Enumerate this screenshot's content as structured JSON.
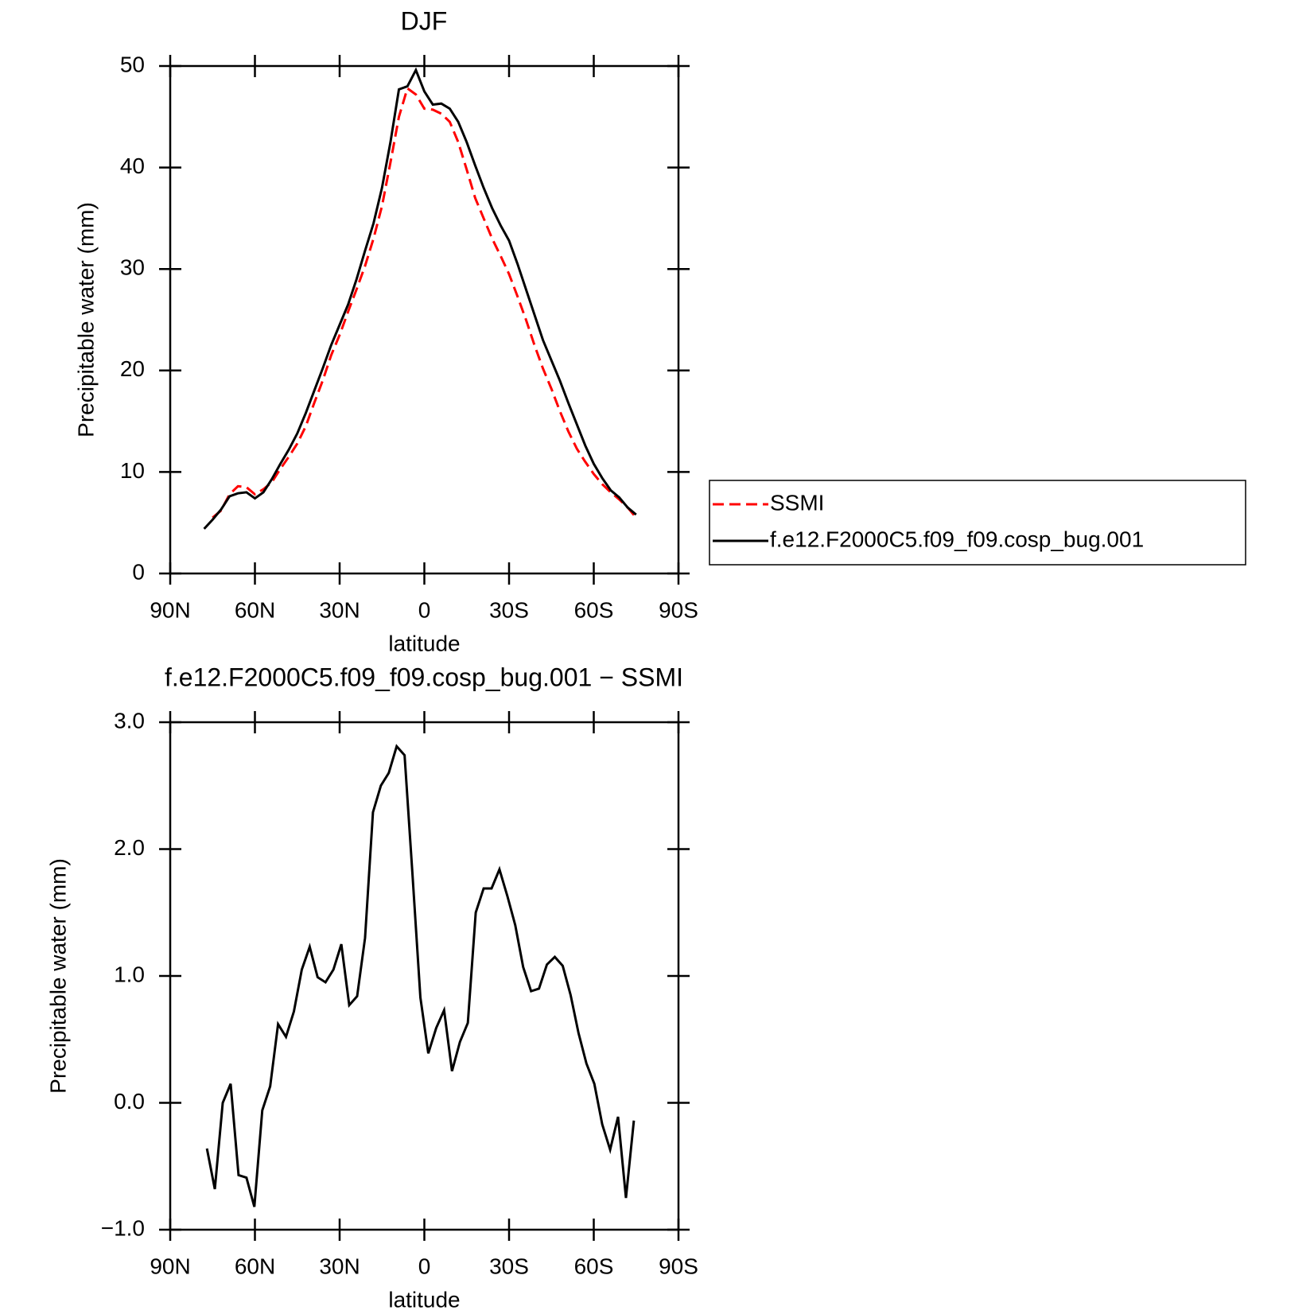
{
  "chart_data": [
    {
      "type": "line",
      "title": "DJF",
      "xlabel": "latitude",
      "ylabel": "Precipitable water (mm)",
      "x": [
        78,
        75,
        72,
        69,
        66,
        63,
        60,
        57,
        54,
        51,
        48,
        45,
        42,
        39,
        36,
        33,
        30,
        27,
        24,
        21,
        18,
        15,
        12,
        9,
        6,
        3,
        0,
        -3,
        -6,
        -9,
        -12,
        -15,
        -18,
        -21,
        -24,
        -27,
        -30,
        -33,
        -36,
        -39,
        -42,
        -45,
        -48,
        -51,
        -54,
        -57,
        -60,
        -63,
        -66,
        -69,
        -72,
        -75
      ],
      "series": [
        {
          "name": "SSMI",
          "color": "#ff0000",
          "dash": true,
          "values": [
            null,
            5.5,
            6.2,
            7.8,
            8.6,
            8.5,
            7.8,
            8.3,
            9.0,
            10.3,
            11.5,
            12.8,
            14.5,
            16.8,
            19.0,
            21.5,
            23.5,
            25.8,
            28.0,
            30.3,
            33.0,
            36.2,
            40.5,
            45.0,
            47.8,
            47.2,
            45.8,
            45.7,
            45.3,
            44.5,
            42.5,
            39.8,
            37.0,
            35.0,
            33.0,
            31.3,
            29.5,
            27.3,
            25.0,
            22.5,
            20.2,
            18.2,
            16.0,
            14.0,
            12.3,
            11.0,
            9.8,
            8.8,
            8.0,
            7.3,
            6.5,
            5.5
          ]
        },
        {
          "name": "f.e12.F2000C5.f09_f09.cosp_bug.001",
          "color": "#000000",
          "dash": false,
          "values": [
            4.4,
            5.3,
            6.3,
            7.6,
            7.9,
            8.0,
            7.4,
            8.0,
            9.3,
            10.8,
            12.2,
            13.8,
            15.8,
            18.0,
            20.2,
            22.5,
            24.5,
            26.5,
            29.0,
            31.8,
            34.5,
            38.0,
            42.5,
            47.7,
            48.0,
            49.6,
            47.5,
            46.2,
            46.3,
            45.8,
            44.5,
            42.5,
            40.2,
            38.0,
            36.0,
            34.3,
            32.8,
            30.5,
            28.0,
            25.5,
            23.0,
            21.0,
            19.0,
            16.8,
            14.7,
            12.6,
            10.8,
            9.4,
            8.2,
            7.5,
            6.5,
            5.8
          ]
        }
      ],
      "xlim": [
        90,
        -90
      ],
      "xticks": [
        {
          "value": 90,
          "label": "90N"
        },
        {
          "value": 60,
          "label": "60N"
        },
        {
          "value": 30,
          "label": "30N"
        },
        0,
        {
          "value": -30,
          "label": "30S"
        },
        {
          "value": -60,
          "label": "60S"
        },
        {
          "value": -90,
          "label": "90S"
        }
      ],
      "ylim": [
        0,
        50
      ],
      "yticks": [
        0,
        10,
        20,
        30,
        40,
        50
      ],
      "legend": "right"
    },
    {
      "type": "line",
      "title": "f.e12.F2000C5.f09_f09.cosp_bug.001 − SSMI",
      "xlabel": "latitude",
      "ylabel": "Precipitable water (mm)",
      "x": [
        77,
        74.2,
        71.4,
        68.6,
        65.8,
        63,
        60.2,
        57.4,
        54.6,
        51.8,
        49,
        46.2,
        43.4,
        40.6,
        37.8,
        35,
        32.2,
        29.4,
        26.6,
        23.8,
        21,
        18.2,
        15.4,
        12.6,
        9.8,
        7,
        4.2,
        1.4,
        -1.4,
        -4.2,
        -7,
        -9.8,
        -12.6,
        -15.4,
        -18.2,
        -21,
        -23.8,
        -26.6,
        -29.4,
        -32.2,
        -35,
        -37.8,
        -40.6,
        -43.4,
        -46.2,
        -49,
        -51.8,
        -54.6,
        -57.4,
        -60.2,
        -63,
        -65.8,
        -68.6,
        -71.4,
        -74.2
      ],
      "values": [
        -0.36,
        -0.68,
        0.0,
        0.15,
        -0.57,
        -0.59,
        -0.82,
        -0.06,
        0.13,
        0.62,
        0.52,
        0.72,
        1.05,
        1.23,
        0.99,
        0.95,
        1.05,
        1.25,
        0.77,
        0.84,
        1.3,
        2.29,
        2.5,
        2.6,
        2.81,
        2.74,
        1.8,
        0.83,
        0.39,
        0.59,
        0.73,
        0.25,
        0.48,
        0.63,
        1.5,
        1.69,
        1.69,
        1.84,
        1.63,
        1.4,
        1.07,
        0.88,
        0.9,
        1.09,
        1.15,
        1.08,
        0.85,
        0.55,
        0.31,
        0.15,
        -0.17,
        -0.37,
        -0.11,
        -0.75,
        -0.14
      ],
      "color": "#000000",
      "xlim": [
        90,
        -90
      ],
      "xticks": [
        {
          "value": 90,
          "label": "90N"
        },
        {
          "value": 60,
          "label": "60N"
        },
        {
          "value": 30,
          "label": "30N"
        },
        0,
        {
          "value": -30,
          "label": "30S"
        },
        {
          "value": -60,
          "label": "60S"
        },
        {
          "value": -90,
          "label": "90S"
        }
      ],
      "ylim": [
        -1,
        3
      ],
      "yticks": [
        {
          "value": 3,
          "label": "3.0"
        },
        {
          "value": 2,
          "label": "2.0"
        },
        {
          "value": 1,
          "label": "1.0"
        },
        {
          "value": 0,
          "label": "0.0"
        },
        {
          "value": -1,
          "label": "−1.0"
        }
      ]
    }
  ]
}
